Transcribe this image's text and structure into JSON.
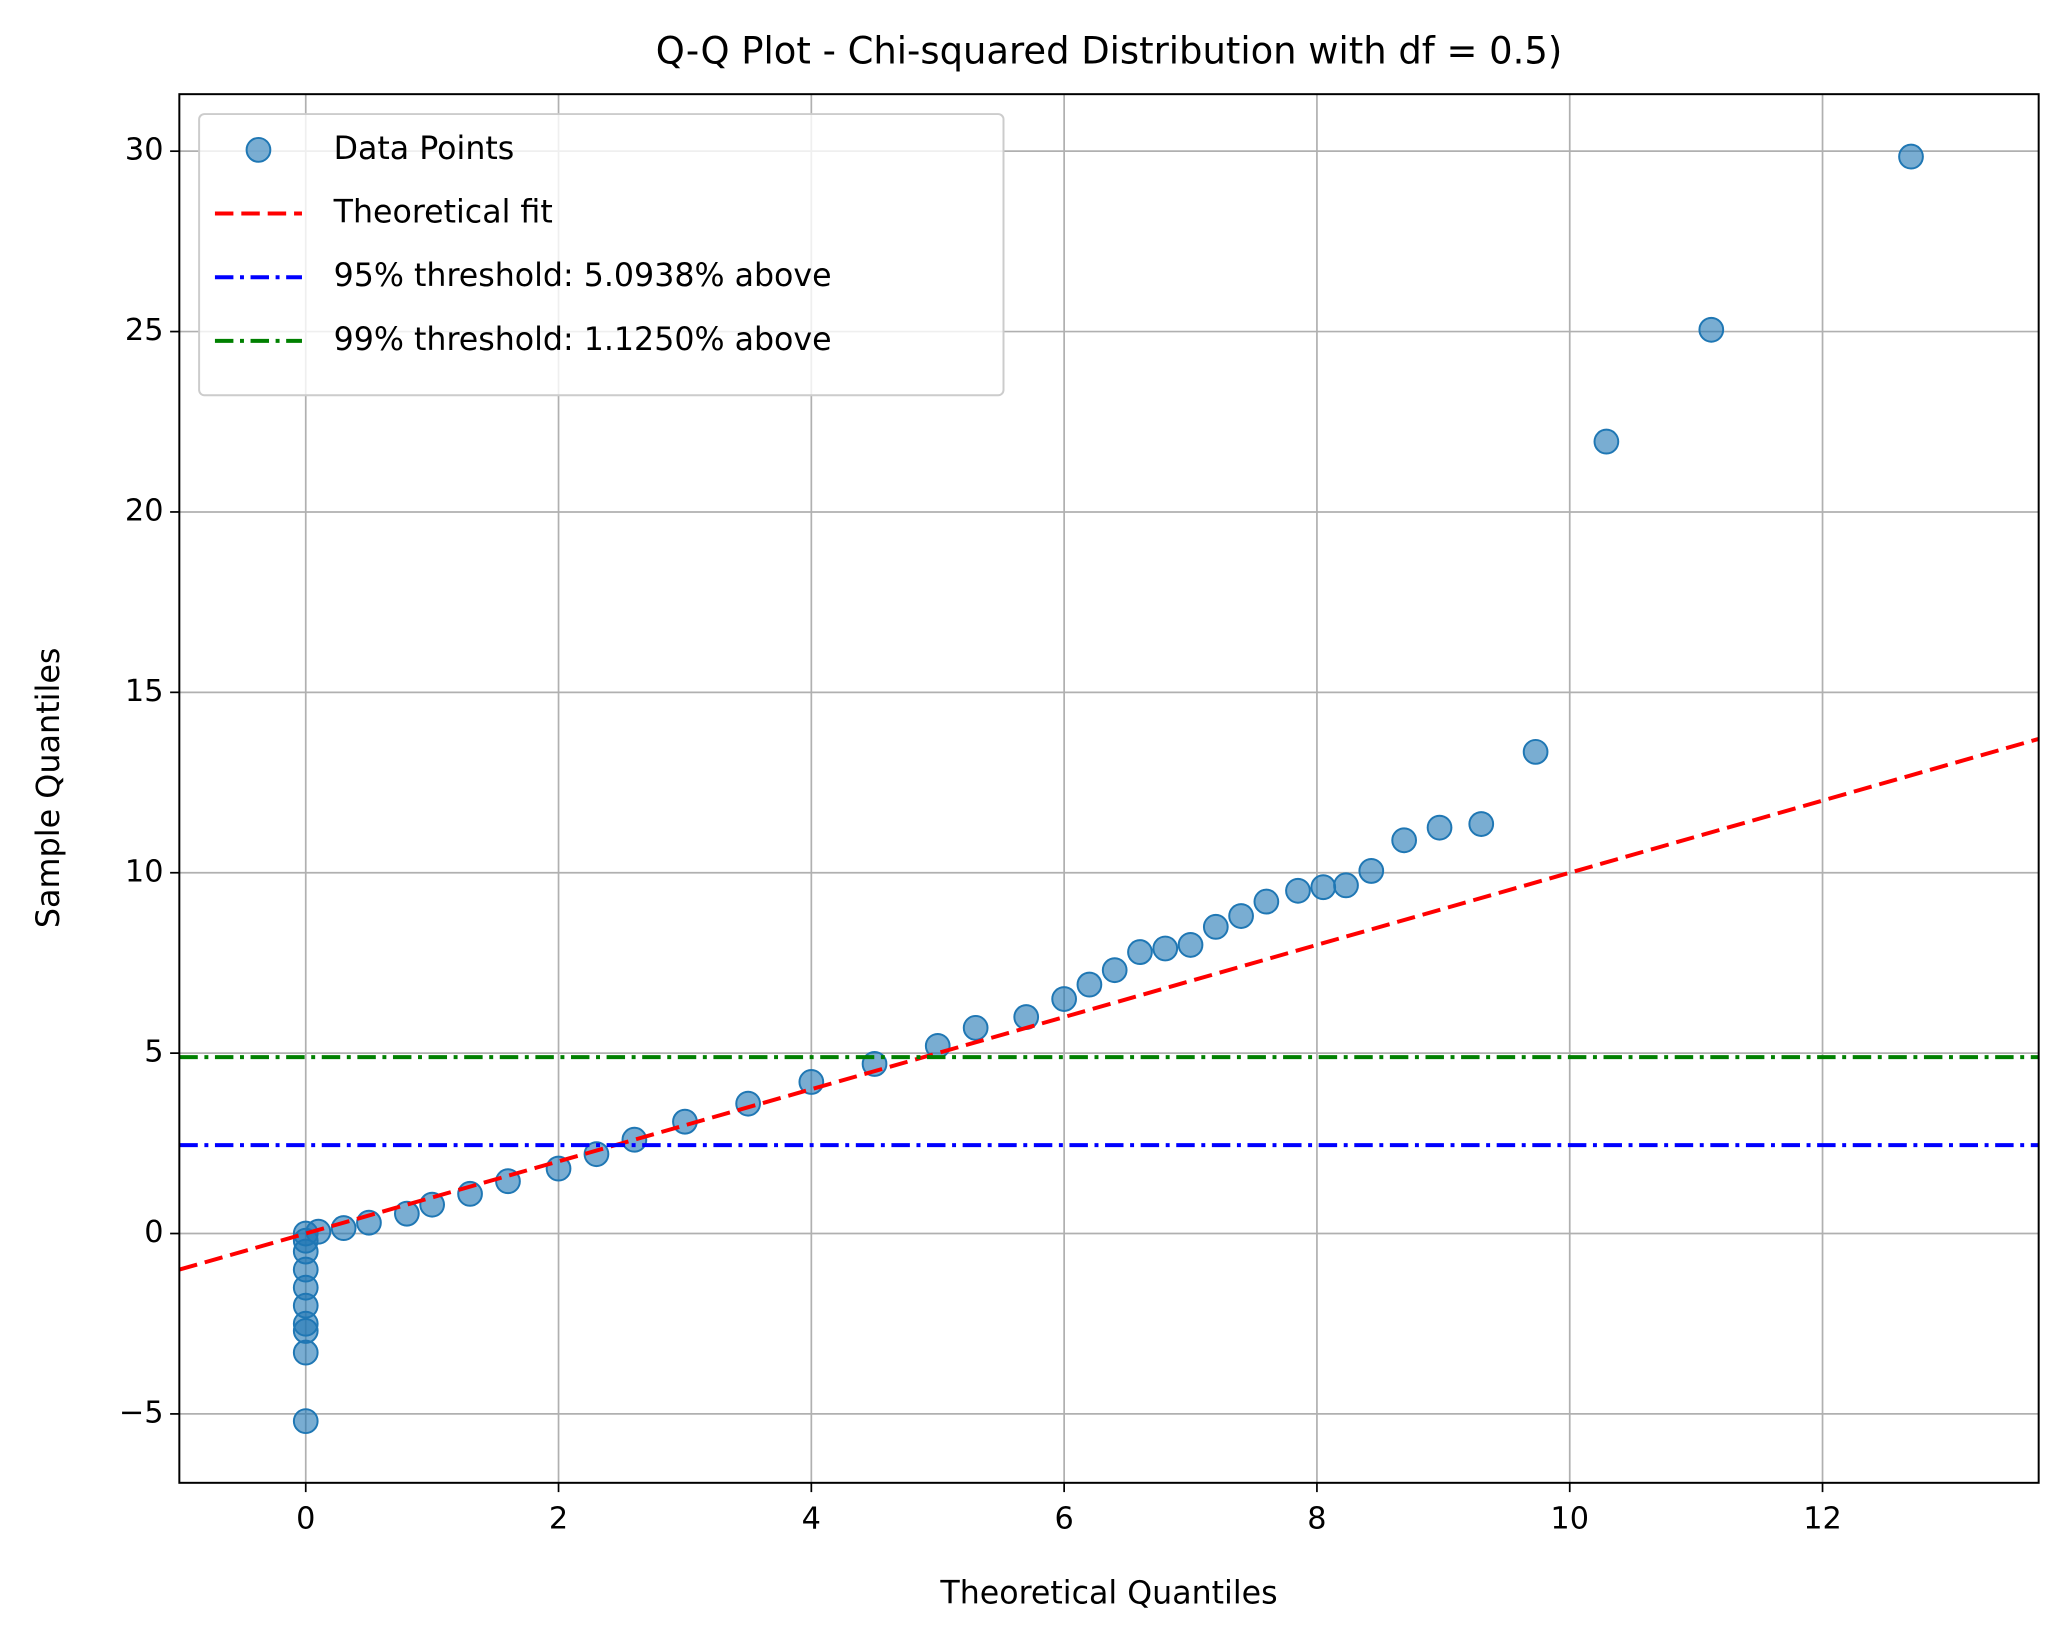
{
  "chart_data": {
    "type": "scatter",
    "title": "Q-Q Plot - Chi-squared Distribution with df = 0.5)",
    "xlabel": "Theoretical Quantiles",
    "ylabel": "Sample Quantiles",
    "xlim": [
      -1.0,
      13.71
    ],
    "ylim": [
      -6.91,
      31.58
    ],
    "xticks": [
      0,
      2,
      4,
      6,
      8,
      10,
      12
    ],
    "yticks": [
      {
        "value": -5,
        "label": "−5"
      },
      0,
      5,
      10,
      15,
      20,
      25,
      30
    ],
    "grid": true,
    "legend": "upper left",
    "series": [
      {
        "name": "Data Points",
        "type": "scatter",
        "color": "#1f77b4",
        "x": [
          0,
          0,
          0,
          0,
          0,
          0,
          0,
          0,
          0,
          0,
          0.1,
          0.3,
          0.5,
          0.8,
          1.0,
          1.3,
          1.6,
          2.0,
          2.3,
          2.6,
          3.0,
          3.5,
          4.0,
          4.5,
          5.0,
          5.3,
          5.7,
          6.0,
          6.2,
          6.4,
          6.6,
          6.8,
          7.0,
          7.2,
          7.4,
          7.6,
          7.85,
          8.05,
          8.23,
          8.43,
          8.69,
          8.97,
          9.3,
          9.73,
          10.29,
          11.12,
          12.7
        ],
        "values": [
          -5.2,
          -3.3,
          -2.7,
          -2.5,
          -2.0,
          -1.5,
          -1.0,
          -0.5,
          -0.2,
          0.0,
          0.05,
          0.15,
          0.3,
          0.55,
          0.8,
          1.1,
          1.45,
          1.8,
          2.2,
          2.6,
          3.1,
          3.6,
          4.2,
          4.7,
          5.2,
          5.7,
          6.0,
          6.5,
          6.9,
          7.3,
          7.8,
          7.9,
          8.0,
          8.5,
          8.8,
          9.2,
          9.5,
          9.6,
          9.65,
          10.05,
          10.9,
          11.25,
          11.35,
          13.35,
          21.95,
          25.05,
          29.85
        ]
      },
      {
        "name": "Theoretical fit",
        "type": "line",
        "color": "#ff0000",
        "dash": "dashed",
        "x": [
          -1.0,
          13.71
        ],
        "values": [
          -1.0,
          13.71
        ]
      },
      {
        "name": "95% threshold: 5.0938% above",
        "type": "hline",
        "color": "#0000ff",
        "dash": "dashdot",
        "values": [
          2.45
        ]
      },
      {
        "name": "99% threshold: 1.1250% above",
        "type": "hline",
        "color": "#008000",
        "dash": "dashdot",
        "values": [
          4.89
        ]
      }
    ]
  }
}
